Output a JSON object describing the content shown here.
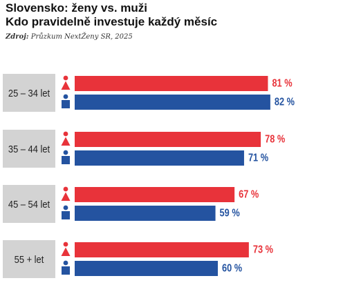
{
  "header": {
    "title_line1": "Slovensko: ženy vs. muži",
    "title_line2": "Kdo pravidelně investuje každý měsíc",
    "source_label": "Zdroj:",
    "source_text": "Průzkum NextŽeny SR, 2025"
  },
  "colors": {
    "women": "#e8333a",
    "men": "#2453a0",
    "label_box": "#d3d3d3"
  },
  "chart_data": {
    "type": "bar",
    "orientation": "horizontal",
    "categories": [
      "25 – 34 let",
      "35 – 44 let",
      "45 – 54 let",
      "55 +  let"
    ],
    "series": [
      {
        "icon": "woman-icon",
        "values": [
          81,
          78,
          67,
          73
        ]
      },
      {
        "icon": "man-icon",
        "values": [
          82,
          71,
          59,
          60
        ]
      }
    ],
    "value_suffix": " %",
    "xlim": [
      0,
      100
    ],
    "grid": false,
    "legend": "none"
  }
}
